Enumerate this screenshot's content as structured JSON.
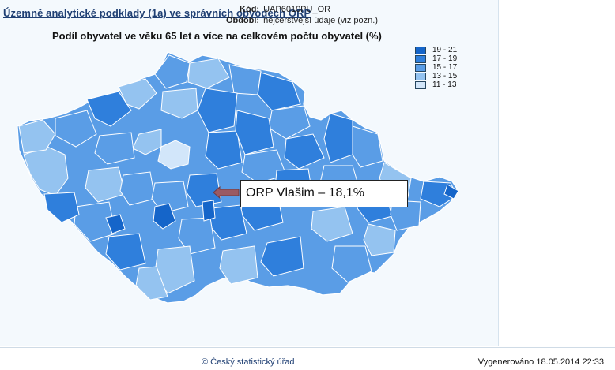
{
  "header": {
    "report_title": "Územně analytické podklady (1a) ve správních obvodech ORP",
    "code_label": "Kód:",
    "code_value": "UAP6010PU_OR",
    "period_label": "Období:",
    "period_value": "nejčerstvější údaje (viz pozn.)"
  },
  "map": {
    "title": "Podíl obyvatel ve věku 65 let a více na celkovém počtu obyvatel (%)",
    "legend": [
      {
        "label": "19 - 21",
        "color": "#1565c9"
      },
      {
        "label": "17 - 19",
        "color": "#2f7fdc"
      },
      {
        "label": "15 - 17",
        "color": "#5a9de6"
      },
      {
        "label": "13 - 15",
        "color": "#94c3f0"
      },
      {
        "label": "11 - 13",
        "color": "#d2e6fa"
      }
    ],
    "callout": "ORP Vlašim  – 18,1%",
    "arrow_color": "#9a5a63"
  },
  "footer": {
    "source": "© Český statistický úřad",
    "generated": "Vygenerováno 18.05.2014 22:33"
  }
}
